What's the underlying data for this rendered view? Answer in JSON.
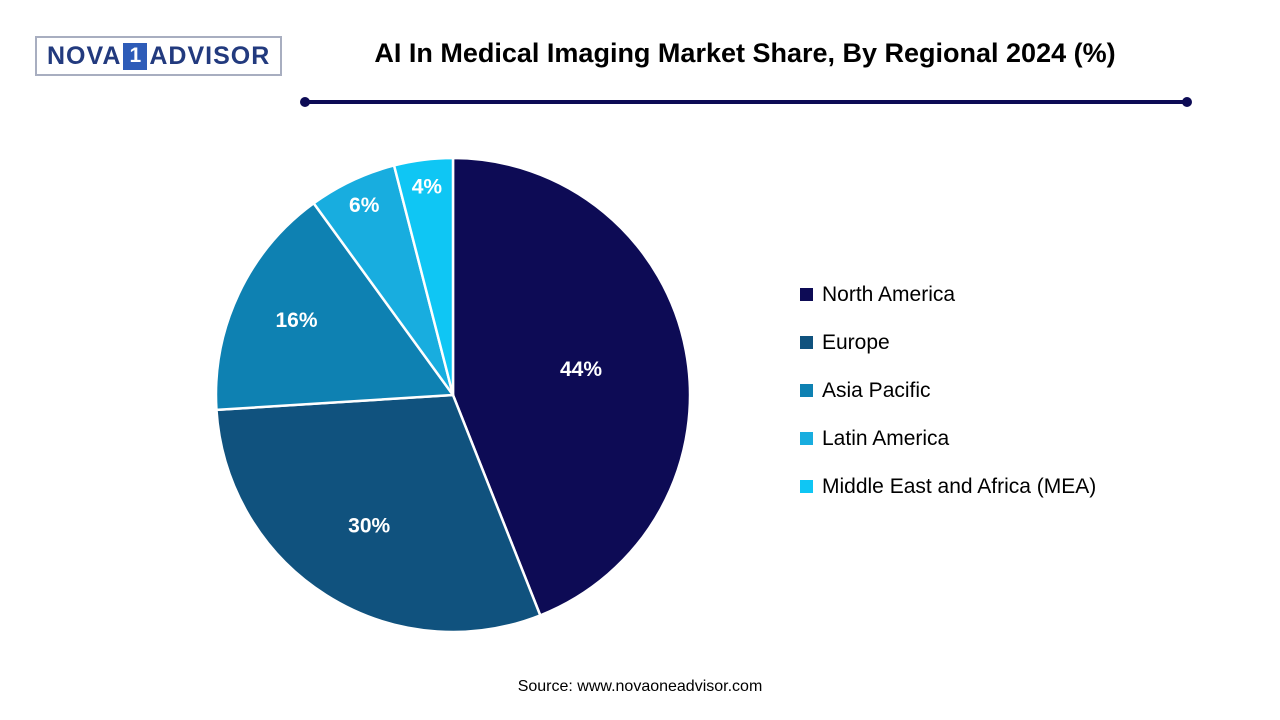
{
  "header": {
    "logo": {
      "part1": "NOVA",
      "part2": "1",
      "part3": "ADVISOR"
    },
    "title": "AI In Medical Imaging Market Share, By Regional 2024 (%)"
  },
  "chart_data": {
    "type": "pie",
    "title": "AI In Medical Imaging Market Share, By Regional 2024 (%)",
    "labels": [
      "North America",
      "Europe",
      "Asia Pacific",
      "Latin America",
      "Middle East and Africa (MEA)"
    ],
    "values": [
      44,
      30,
      16,
      6,
      4
    ],
    "slice_labels": [
      "44%",
      "30%",
      "16%",
      "6%",
      "4%"
    ],
    "colors": [
      "#0d0b55",
      "#10527e",
      "#0e81b2",
      "#18addf",
      "#0fc6f4"
    ],
    "start_angle_deg": 0,
    "direction": "clockwise",
    "legend_position": "right",
    "slice_border_color": "#ffffff",
    "slice_label_color": "#ffffff"
  },
  "footer": {
    "source": "Source: www.novaoneadvisor.com"
  },
  "colors": {
    "accent": "#0d0b55",
    "title_text": "#000000"
  }
}
